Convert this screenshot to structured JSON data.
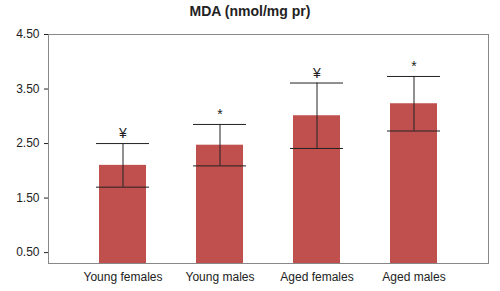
{
  "chart_data": {
    "type": "bar",
    "title": "MDA (nmol/mg pr)",
    "categories": [
      "Young females",
      "Young males",
      "Aged females",
      "Aged males"
    ],
    "values": [
      2.1,
      2.47,
      3.01,
      3.23
    ],
    "error": [
      0.4,
      0.38,
      0.6,
      0.5
    ],
    "annotations": [
      "¥",
      "*",
      "¥",
      "*"
    ],
    "color": "#c0504d",
    "ylim": [
      0.3,
      4.5
    ],
    "yticks": [
      {
        "value": 0.5,
        "label": "0.50"
      },
      {
        "value": 1.5,
        "label": "1.50"
      },
      {
        "value": 2.5,
        "label": "2.50"
      },
      {
        "value": 3.5,
        "label": "3.50"
      },
      {
        "value": 4.5,
        "label": "4.50"
      }
    ],
    "grid": false
  }
}
